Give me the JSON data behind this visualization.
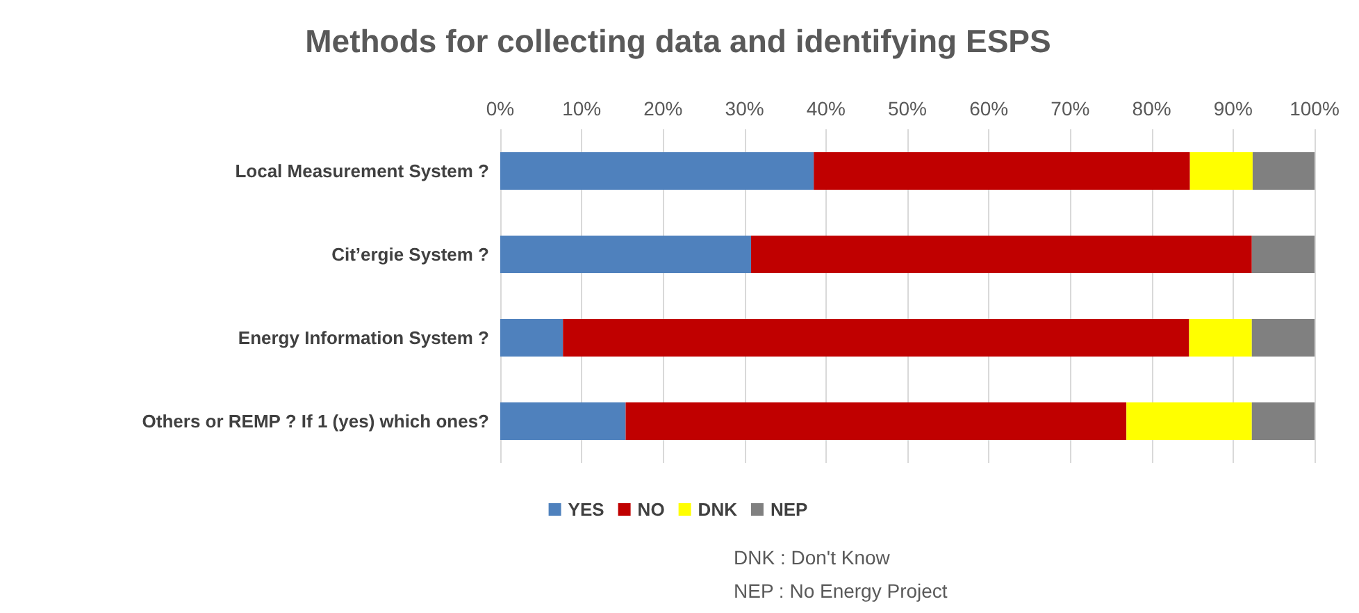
{
  "chart_data": {
    "type": "bar",
    "orientation": "horizontal",
    "stacked": true,
    "title": "Methods for collecting data and identifying ESPS",
    "categories": [
      "Local Measurement System ?",
      "Cit’ergie System ?",
      "Energy Information System ?",
      "Others or REMP ? If 1 (yes) which ones?"
    ],
    "series": [
      {
        "name": "YES",
        "color": "#4f81bd",
        "values": [
          38.5,
          30.8,
          7.7,
          15.4
        ]
      },
      {
        "name": "NO",
        "color": "#c00000",
        "values": [
          46.2,
          61.5,
          76.9,
          61.5
        ]
      },
      {
        "name": "DNK",
        "color": "#ffff00",
        "values": [
          7.7,
          0,
          7.7,
          15.4
        ]
      },
      {
        "name": "NEP",
        "color": "#808080",
        "values": [
          7.6,
          7.7,
          7.7,
          7.7
        ]
      }
    ],
    "xlim": [
      0,
      100
    ],
    "xticks": [
      {
        "value": 0,
        "label": "0%"
      },
      {
        "value": 10,
        "label": "10%"
      },
      {
        "value": 20,
        "label": "20%"
      },
      {
        "value": 30,
        "label": "30%"
      },
      {
        "value": 40,
        "label": "40%"
      },
      {
        "value": 50,
        "label": "50%"
      },
      {
        "value": 60,
        "label": "60%"
      },
      {
        "value": 70,
        "label": "70%"
      },
      {
        "value": 80,
        "label": "80%"
      },
      {
        "value": 90,
        "label": "90%"
      },
      {
        "value": 100,
        "label": "100%"
      }
    ],
    "grid": "x",
    "legend": "bottom",
    "annotations": [
      "DNK : Don't Know",
      "NEP : No Energy Project"
    ]
  }
}
